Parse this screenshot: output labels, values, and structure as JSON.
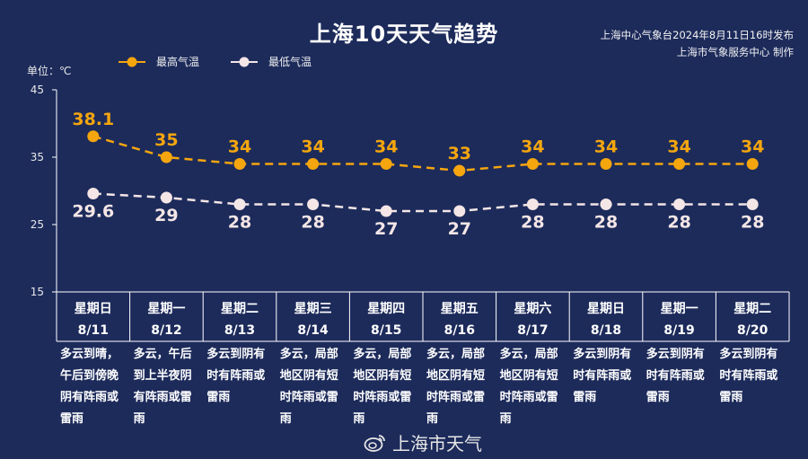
{
  "header": {
    "title": "上海10天天气趋势",
    "publisher_line1": "上海中心气象台2024年8月11日16时发布",
    "publisher_line2": "上海市气象服务中心 制作"
  },
  "unit_label": "单位：℃",
  "watermark": "上海市天气",
  "colors": {
    "background": "#1d2b5b",
    "high": "#f5a60e",
    "low": "#f4e6e6",
    "axis": "#ffffff"
  },
  "chart_data": {
    "type": "line",
    "categories": [
      "8/11",
      "8/12",
      "8/13",
      "8/14",
      "8/15",
      "8/16",
      "8/17",
      "8/18",
      "8/19",
      "8/20"
    ],
    "weekdays": [
      "星期日",
      "星期一",
      "星期二",
      "星期三",
      "星期四",
      "星期五",
      "星期六",
      "星期日",
      "星期一",
      "星期二"
    ],
    "series": [
      {
        "name": "最高气温",
        "values": [
          38.1,
          35,
          34,
          34,
          34,
          33,
          34,
          34,
          34,
          34
        ],
        "labels": [
          "38.1",
          "35",
          "34",
          "34",
          "34",
          "33",
          "34",
          "34",
          "34",
          "34"
        ],
        "color": "#f5a60e"
      },
      {
        "name": "最低气温",
        "values": [
          29.6,
          29,
          28,
          28,
          27,
          27,
          28,
          28,
          28,
          28
        ],
        "labels": [
          "29.6",
          "29",
          "28",
          "28",
          "27",
          "27",
          "28",
          "28",
          "28",
          "28"
        ],
        "color": "#f4e6e6"
      }
    ],
    "ylim": [
      15,
      45
    ],
    "yticks": [
      "15",
      "25",
      "35",
      "45"
    ],
    "ylabel": "单位：℃",
    "descriptions": [
      "多云到晴，午后到傍晚阴有阵雨或雷雨",
      "多云，午后到上半夜阴有阵雨或雷雨",
      "多云到阴有时有阵雨或雷雨",
      "多云，局部地区阴有短时阵雨或雷雨",
      "多云，局部地区阴有短时阵雨或雷雨",
      "多云，局部地区阴有短时阵雨或雷雨",
      "多云，局部地区阴有短时阵雨或雷雨",
      "多云到阴有时有阵雨或雷雨",
      "多云到阴有时有阵雨或雷雨",
      "多云到阴有时有阵雨或雷雨"
    ]
  }
}
